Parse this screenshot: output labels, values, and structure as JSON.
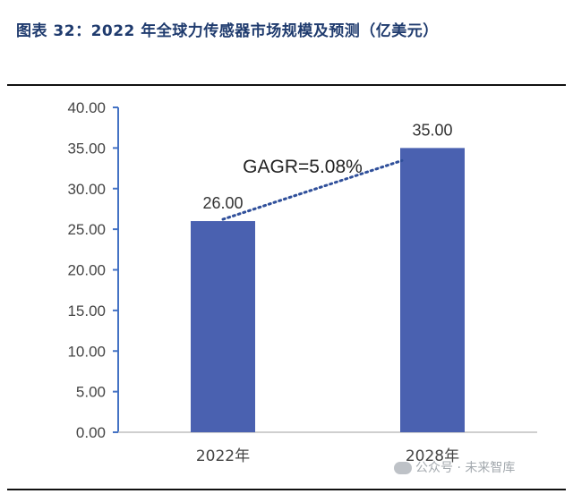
{
  "figure": {
    "title": "图表 32：2022 年全球力传感器市场规模及预测（亿美元）"
  },
  "watermark": {
    "text": "公众号 · 未来智库"
  },
  "colors": {
    "bar": "#4a61b0",
    "axis": "#4472c4",
    "trend": "#2f4f9a",
    "title": "#1f3b6e"
  },
  "chart_data": {
    "type": "bar",
    "categories": [
      "2022年",
      "2028年"
    ],
    "values": [
      26.0,
      35.0
    ],
    "value_labels": [
      "26.00",
      "35.00"
    ],
    "y_ticks": [
      "0.00",
      "5.00",
      "10.00",
      "15.00",
      "20.00",
      "25.00",
      "30.00",
      "35.00",
      "40.00"
    ],
    "ylim": [
      0,
      40
    ],
    "annotation": "GAGR=5.08%",
    "trend_line": "dotted",
    "legend": "none",
    "grid": false
  }
}
